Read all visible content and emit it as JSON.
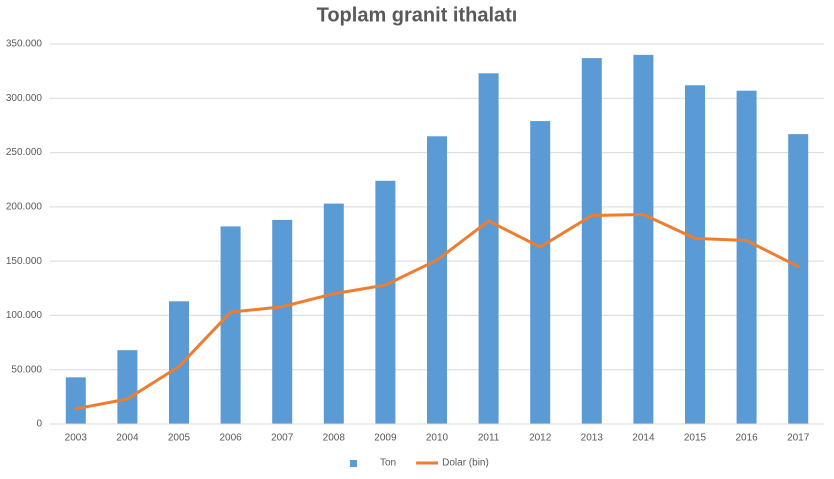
{
  "chart_data": {
    "type": "combo",
    "title": "Toplam granit ithalatı",
    "categories": [
      "2003",
      "2004",
      "2005",
      "2006",
      "2007",
      "2008",
      "2009",
      "2010",
      "2011",
      "2012",
      "2013",
      "2014",
      "2015",
      "2016",
      "2017"
    ],
    "series": [
      {
        "name": "Ton",
        "type": "bar",
        "color": "#5b9bd5",
        "values": [
          43000,
          68000,
          113000,
          182000,
          188000,
          203000,
          224000,
          265000,
          323000,
          279000,
          337000,
          340000,
          312000,
          307000,
          267000
        ]
      },
      {
        "name": "Dolar (bin)",
        "type": "line",
        "color": "#ed7d31",
        "values": [
          14000,
          23000,
          53000,
          103000,
          108000,
          120000,
          128000,
          151000,
          187000,
          163000,
          192000,
          193000,
          171000,
          169000,
          145000
        ]
      }
    ],
    "ylim": [
      0,
      350000
    ],
    "yticks": [
      0,
      {
        "value": 50000,
        "label": "50.000"
      },
      {
        "value": 100000,
        "label": "100.000"
      },
      {
        "value": 150000,
        "label": "150.000"
      },
      {
        "value": 200000,
        "label": "200.000"
      },
      {
        "value": 250000,
        "label": "250.000"
      },
      {
        "value": 300000,
        "label": "300.000"
      },
      {
        "value": 350000,
        "label": "350.000"
      }
    ],
    "grid": true,
    "legend": "bottom"
  }
}
